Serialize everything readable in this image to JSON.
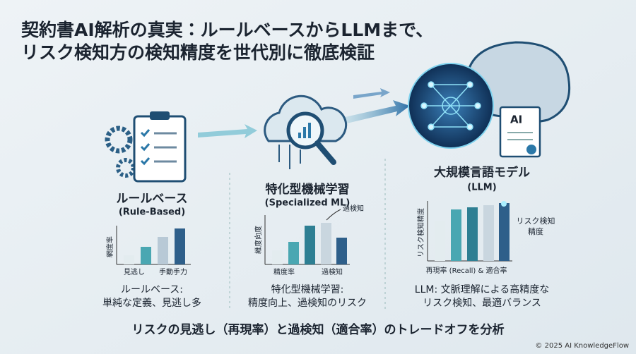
{
  "header": {
    "title": [
      "契約書AI解析の真実：ルールベースからLLMまで、",
      "リスク検知方の検知精度を世代別に徹底検証"
    ]
  },
  "panels": [
    {
      "title": "ルールベース",
      "subtitle": "(Rule-Based)",
      "y_label": "網度率",
      "x_labels": [
        "見逃し",
        "手動手力"
      ],
      "caption": [
        "ルールベース:",
        "単純な定義、見逃し多"
      ]
    },
    {
      "title": "特化型機械学習",
      "subtitle": "(Specialized ML)",
      "y_label": "維度向度",
      "x_labels": [
        "精度率",
        "過検知"
      ],
      "annotation": [
        "過検知"
      ],
      "caption": [
        "特化型機械学習:",
        "精度向上、過検知のリスク"
      ]
    },
    {
      "title": "大規模言語モデル",
      "subtitle": "(LLM)",
      "y_label": "リスク検知精度",
      "x_labels": [
        "再現率 (Recall) & 適合率"
      ],
      "annotation": [
        "リスク検知",
        "精度"
      ],
      "caption": [
        "LLM: 文脈理解による高精度な",
        "リスク検知、最適バランス"
      ]
    }
  ],
  "icons": {
    "ai_doc": "AI"
  },
  "footer": {
    "summary": "リスクの見逃し（再現率）と過検知（適合率）のトレードオフを分析",
    "copyright": "© 2025 AI KnowledgeFlow"
  }
}
